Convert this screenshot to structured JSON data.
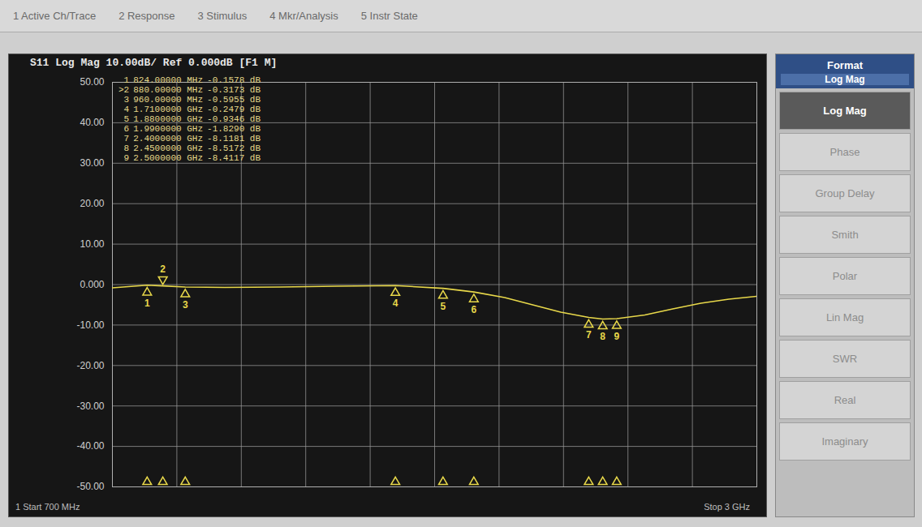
{
  "chart_data": {
    "type": "line",
    "title": "S11 Log Mag 10.00dB/ Ref 0.000dB [F1 M]",
    "x": [
      700,
      824,
      880,
      960,
      1100,
      1300,
      1500,
      1710,
      1880,
      1990,
      2100,
      2200,
      2300,
      2400,
      2450,
      2500,
      2600,
      2700,
      2800,
      2900,
      3000
    ],
    "series": [
      {
        "color": "#e8d84a",
        "values": [
          -0.8,
          -0.1578,
          -0.3173,
          -0.5955,
          -0.7,
          -0.6,
          -0.4,
          -0.2479,
          -0.9346,
          -1.829,
          -3.2,
          -5.0,
          -6.8,
          -8.1181,
          -8.5172,
          -8.4117,
          -7.5,
          -6.0,
          -4.6,
          -3.6,
          -2.9
        ]
      }
    ],
    "xlim": [
      700,
      3000
    ],
    "xticks": [
      700,
      930,
      1160,
      1390,
      1620,
      1850,
      2080,
      2310,
      2540,
      2770,
      3000
    ],
    "ylim": [
      -50,
      50
    ],
    "yticks": [
      {
        "value": 50,
        "label": "50.00"
      },
      {
        "value": 40,
        "label": "40.00"
      },
      {
        "value": 30,
        "label": "30.00"
      },
      {
        "value": 20,
        "label": "20.00"
      },
      {
        "value": 10,
        "label": "10.00"
      },
      {
        "value": 0,
        "label": "0.000"
      },
      {
        "value": -10,
        "label": "-10.00"
      },
      {
        "value": -20,
        "label": "-20.00"
      },
      {
        "value": -30,
        "label": "-30.00"
      },
      {
        "value": -40,
        "label": "-40.00"
      },
      {
        "value": -50,
        "label": "-50.00"
      }
    ],
    "grid": true,
    "tick_labels": "y",
    "markers": [
      {
        "number": 1,
        "x": 824,
        "x_label": "824.00000 MHz",
        "value": -0.1578,
        "value_label": "-0.1578 dB"
      },
      {
        "number": 2,
        "x": 880,
        "x_label": "880.00000 MHz",
        "value": -0.3173,
        "value_label": "-0.3173 dB"
      },
      {
        "number": 3,
        "x": 960,
        "x_label": "960.00000 MHz",
        "value": -0.5955,
        "value_label": "-0.5955 dB"
      },
      {
        "number": 4,
        "x": 1710,
        "x_label": "1.7100000 GHz",
        "value": -0.2479,
        "value_label": "-0.2479 dB"
      },
      {
        "number": 5,
        "x": 1880,
        "x_label": "1.8800000 GHz",
        "value": -0.9346,
        "value_label": "-0.9346 dB"
      },
      {
        "number": 6,
        "x": 1990,
        "x_label": "1.9900000 GHz",
        "value": -1.829,
        "value_label": "-1.8290 dB"
      },
      {
        "number": 7,
        "x": 2400,
        "x_label": "2.4000000 GHz",
        "value": -8.1181,
        "value_label": "-8.1181 dB"
      },
      {
        "number": 8,
        "x": 2450,
        "x_label": "2.4500000 GHz",
        "value": -8.5172,
        "value_label": "-8.5172 dB"
      },
      {
        "number": 9,
        "x": 2500,
        "x_label": "2.5000000 GHz",
        "value": -8.4117,
        "value_label": "-8.4117 dB"
      }
    ],
    "active_marker": {
      "number": 2,
      "prefix": ">"
    }
  },
  "screen": {
    "menu": [
      "1 Active Ch/Trace",
      "2 Response",
      "3 Stimulus",
      "4 Mkr/Analysis",
      "5 Instr State"
    ],
    "softkeys": {
      "header": "Format",
      "current": "Log Mag",
      "items": [
        "Log Mag",
        "Phase",
        "Group Delay",
        "Smith",
        "Polar",
        "Lin Mag",
        "SWR",
        "Real",
        "Imaginary"
      ],
      "selected": "Log Mag"
    },
    "footer": {
      "start": "1 Start 700 MHz",
      "stop": "Stop 3 GHz"
    }
  }
}
